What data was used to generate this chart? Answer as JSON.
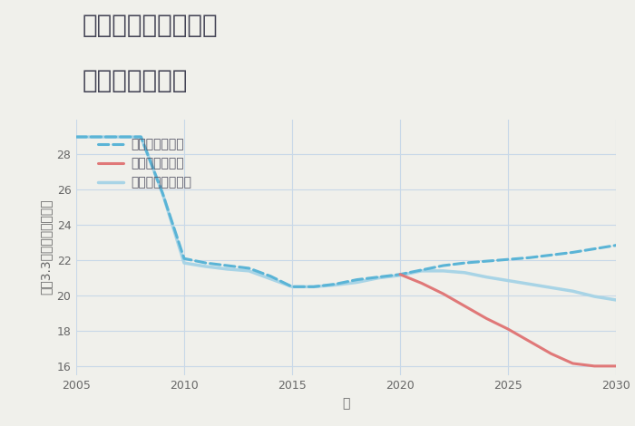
{
  "title_line1": "奈良県奈良市針町の",
  "title_line2": "土地の価格推移",
  "xlabel": "年",
  "ylabel": "平（3.3㎡）単価（万円）",
  "background_color": "#f0f0eb",
  "plot_background": "#f0f0eb",
  "grid_color": "#c8d8e8",
  "xlim": [
    2005,
    2030
  ],
  "ylim": [
    15.5,
    30.0
  ],
  "xticks": [
    2005,
    2010,
    2015,
    2020,
    2025,
    2030
  ],
  "yticks": [
    16,
    18,
    20,
    22,
    24,
    26,
    28
  ],
  "good_scenario": {
    "label": "グッドシナリオ",
    "color": "#5ab4d6",
    "linewidth": 2.2,
    "linestyle": "--",
    "x": [
      2005,
      2006,
      2007,
      2008,
      2009,
      2010,
      2011,
      2012,
      2013,
      2014,
      2015,
      2016,
      2017,
      2018,
      2019,
      2020,
      2021,
      2022,
      2023,
      2024,
      2025,
      2026,
      2027,
      2028,
      2029,
      2030
    ],
    "y": [
      29.0,
      29.0,
      29.0,
      29.0,
      25.8,
      22.1,
      21.85,
      21.7,
      21.55,
      21.1,
      20.5,
      20.5,
      20.65,
      20.9,
      21.05,
      21.2,
      21.45,
      21.7,
      21.85,
      21.95,
      22.05,
      22.15,
      22.3,
      22.45,
      22.65,
      22.85
    ]
  },
  "bad_scenario": {
    "label": "バッドシナリオ",
    "color": "#e07878",
    "linewidth": 2.2,
    "linestyle": "-",
    "x": [
      2020,
      2021,
      2022,
      2023,
      2024,
      2025,
      2026,
      2027,
      2028,
      2029,
      2030
    ],
    "y": [
      21.2,
      20.7,
      20.1,
      19.4,
      18.7,
      18.1,
      17.4,
      16.7,
      16.15,
      16.0,
      16.0
    ]
  },
  "normal_scenario": {
    "label": "ノーマルシナリオ",
    "color": "#a8d4e6",
    "linewidth": 2.5,
    "linestyle": "-",
    "x": [
      2005,
      2006,
      2007,
      2008,
      2009,
      2010,
      2011,
      2012,
      2013,
      2014,
      2015,
      2016,
      2017,
      2018,
      2019,
      2020,
      2021,
      2022,
      2023,
      2024,
      2025,
      2026,
      2027,
      2028,
      2029,
      2030
    ],
    "y": [
      29.0,
      29.0,
      29.0,
      29.0,
      25.8,
      21.85,
      21.65,
      21.5,
      21.4,
      20.95,
      20.5,
      20.5,
      20.6,
      20.75,
      21.0,
      21.15,
      21.4,
      21.4,
      21.3,
      21.05,
      20.85,
      20.65,
      20.45,
      20.25,
      19.95,
      19.75
    ]
  },
  "legend_fontsize": 10,
  "title_fontsize": 20,
  "axis_fontsize": 10,
  "tick_fontsize": 9
}
